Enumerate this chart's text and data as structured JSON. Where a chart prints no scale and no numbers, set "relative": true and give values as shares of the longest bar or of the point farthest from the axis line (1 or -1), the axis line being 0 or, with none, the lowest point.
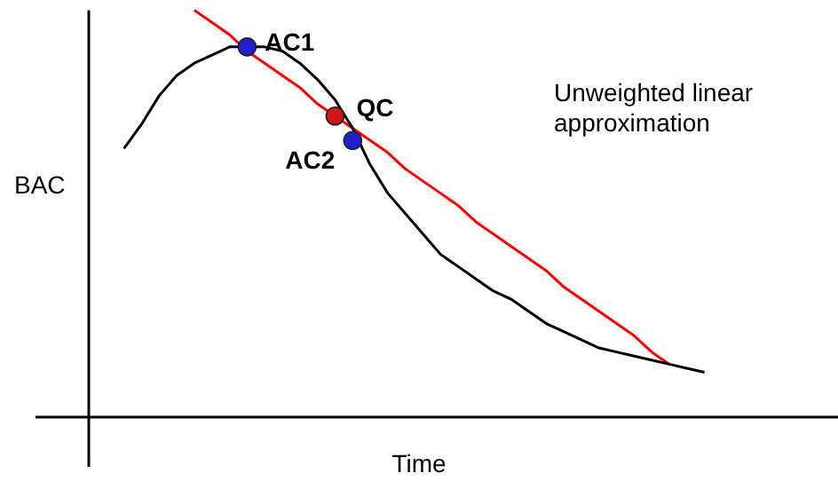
{
  "chart_data": {
    "type": "line",
    "relative": true,
    "xlabel": "Time",
    "ylabel": "BAC",
    "annotations": [
      "Unweighted linear approximation"
    ],
    "categories": [
      null,
      null,
      null,
      null,
      null,
      null,
      null,
      null,
      null,
      null,
      null,
      null,
      null,
      null,
      null,
      null,
      null,
      null,
      null,
      null,
      null,
      null,
      null,
      null,
      null,
      null,
      null,
      null,
      null,
      null,
      null,
      null,
      null,
      null,
      null,
      null,
      null,
      null,
      null,
      null,
      null,
      null,
      null
    ],
    "series": [
      {
        "color": "#000000",
        "marker": "none",
        "values": [
          null,
          null,
          0.66,
          0.72,
          0.79,
          0.84,
          0.87,
          0.89,
          0.91,
          0.91,
          0.91,
          0.9,
          0.87,
          0.83,
          0.78,
          0.71,
          0.62,
          0.55,
          0.5,
          0.45,
          0.4,
          0.37,
          0.34,
          0.31,
          0.29,
          0.26,
          0.23,
          0.21,
          0.19,
          0.17,
          0.16,
          0.15,
          0.14,
          0.13,
          0.12,
          0.11,
          null,
          null,
          null,
          null,
          null,
          null,
          null
        ]
      },
      {
        "color": "#ff0000",
        "marker": "none",
        "values": [
          null,
          null,
          null,
          null,
          null,
          null,
          1,
          0.97,
          0.94,
          0.9,
          0.87,
          0.84,
          0.81,
          0.77,
          0.74,
          0.71,
          0.68,
          0.65,
          0.61,
          0.58,
          0.55,
          0.52,
          0.48,
          0.45,
          0.42,
          0.39,
          0.36,
          0.32,
          0.29,
          0.26,
          0.23,
          0.2,
          0.16,
          0.13,
          null,
          null,
          null,
          null,
          null,
          null,
          null,
          null,
          null
        ]
      },
      {
        "name": "AC1",
        "color": "#2020d0",
        "marker": "circle",
        "values": [
          null,
          null,
          null,
          null,
          null,
          null,
          null,
          null,
          null,
          0.91,
          null,
          null,
          null,
          null,
          null,
          null,
          null,
          null,
          null,
          null,
          null,
          null,
          null,
          null,
          null,
          null,
          null,
          null,
          null,
          null,
          null,
          null,
          null,
          null,
          null,
          null,
          null,
          null,
          null,
          null,
          null,
          null,
          null
        ]
      },
      {
        "name": "QC",
        "color": "#d01818",
        "marker": "circle",
        "values": [
          null,
          null,
          null,
          null,
          null,
          null,
          null,
          null,
          null,
          null,
          null,
          null,
          null,
          null,
          0.74,
          null,
          null,
          null,
          null,
          null,
          null,
          null,
          null,
          null,
          null,
          null,
          null,
          null,
          null,
          null,
          null,
          null,
          null,
          null,
          null,
          null,
          null,
          null,
          null,
          null,
          null,
          null,
          null
        ]
      },
      {
        "name": "AC2",
        "color": "#2020d0",
        "marker": "circle",
        "values": [
          null,
          null,
          null,
          null,
          null,
          null,
          null,
          null,
          null,
          null,
          null,
          null,
          null,
          null,
          null,
          0.68,
          null,
          null,
          null,
          null,
          null,
          null,
          null,
          null,
          null,
          null,
          null,
          null,
          null,
          null,
          null,
          null,
          null,
          null,
          null,
          null,
          null,
          null,
          null,
          null,
          null,
          null,
          null
        ]
      }
    ]
  }
}
